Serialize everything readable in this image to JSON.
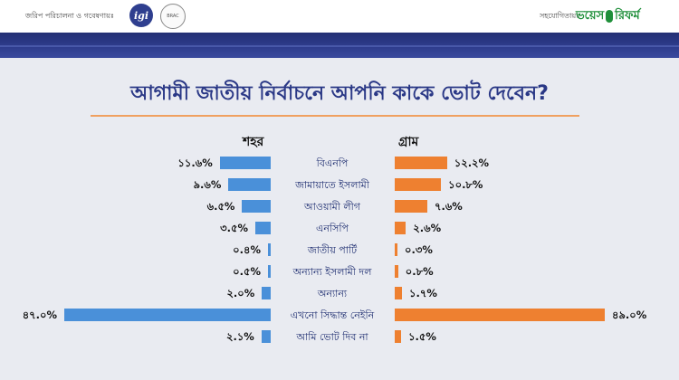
{
  "header": {
    "left_credit": "জরিপ পরিচালনা ও গবেষণায়ঃ",
    "logo_igi": "igi",
    "logo_brac": "BRAC",
    "right_credit": "সহযোগিতায়ঃ",
    "logo_voice_a": "ভয়েস",
    "logo_voice_b": "রিফর্ম"
  },
  "colors": {
    "urban_bar": "#4a90d9",
    "rural_bar": "#ee8030",
    "title": "#2a3886",
    "band": "#2e3c8c"
  },
  "chart_data": {
    "type": "bar",
    "title": "আগামী জাতীয় নির্বাচনে আপনি কাকে ভোট দেবেন?",
    "orientation": "horizontal-diverging",
    "categories": [
      "বিএনপি",
      "জামায়াতে ইসলামী",
      "আওয়ামী লীগ",
      "এনসিপি",
      "জাতীয় পার্টি",
      "অন্যান্য ইসলামী দল",
      "অন্যান্য",
      "এখনো সিদ্ধান্ত নেইনি",
      "আমি ভোট দিব না"
    ],
    "series": [
      {
        "name": "শহর",
        "values": [
          11.6,
          9.6,
          6.5,
          3.5,
          0.4,
          0.5,
          2.0,
          47.0,
          2.1
        ],
        "labels": [
          "১১.৬%",
          "৯.৬%",
          "৬.৫%",
          "৩.৫%",
          "০.৪%",
          "০.৫%",
          "২.০%",
          "৪৭.০%",
          "২.১%"
        ]
      },
      {
        "name": "গ্রাম",
        "values": [
          12.2,
          10.8,
          7.6,
          2.6,
          0.3,
          0.8,
          1.7,
          49.0,
          1.5
        ],
        "labels": [
          "১২.২%",
          "১০.৮%",
          "৭.৬%",
          "২.৬%",
          "০.৩%",
          "০.৮%",
          "১.৭%",
          "৪৯.০%",
          "১.৫%"
        ]
      }
    ],
    "xlim": [
      0,
      50
    ],
    "grid": false,
    "legend": "none"
  }
}
